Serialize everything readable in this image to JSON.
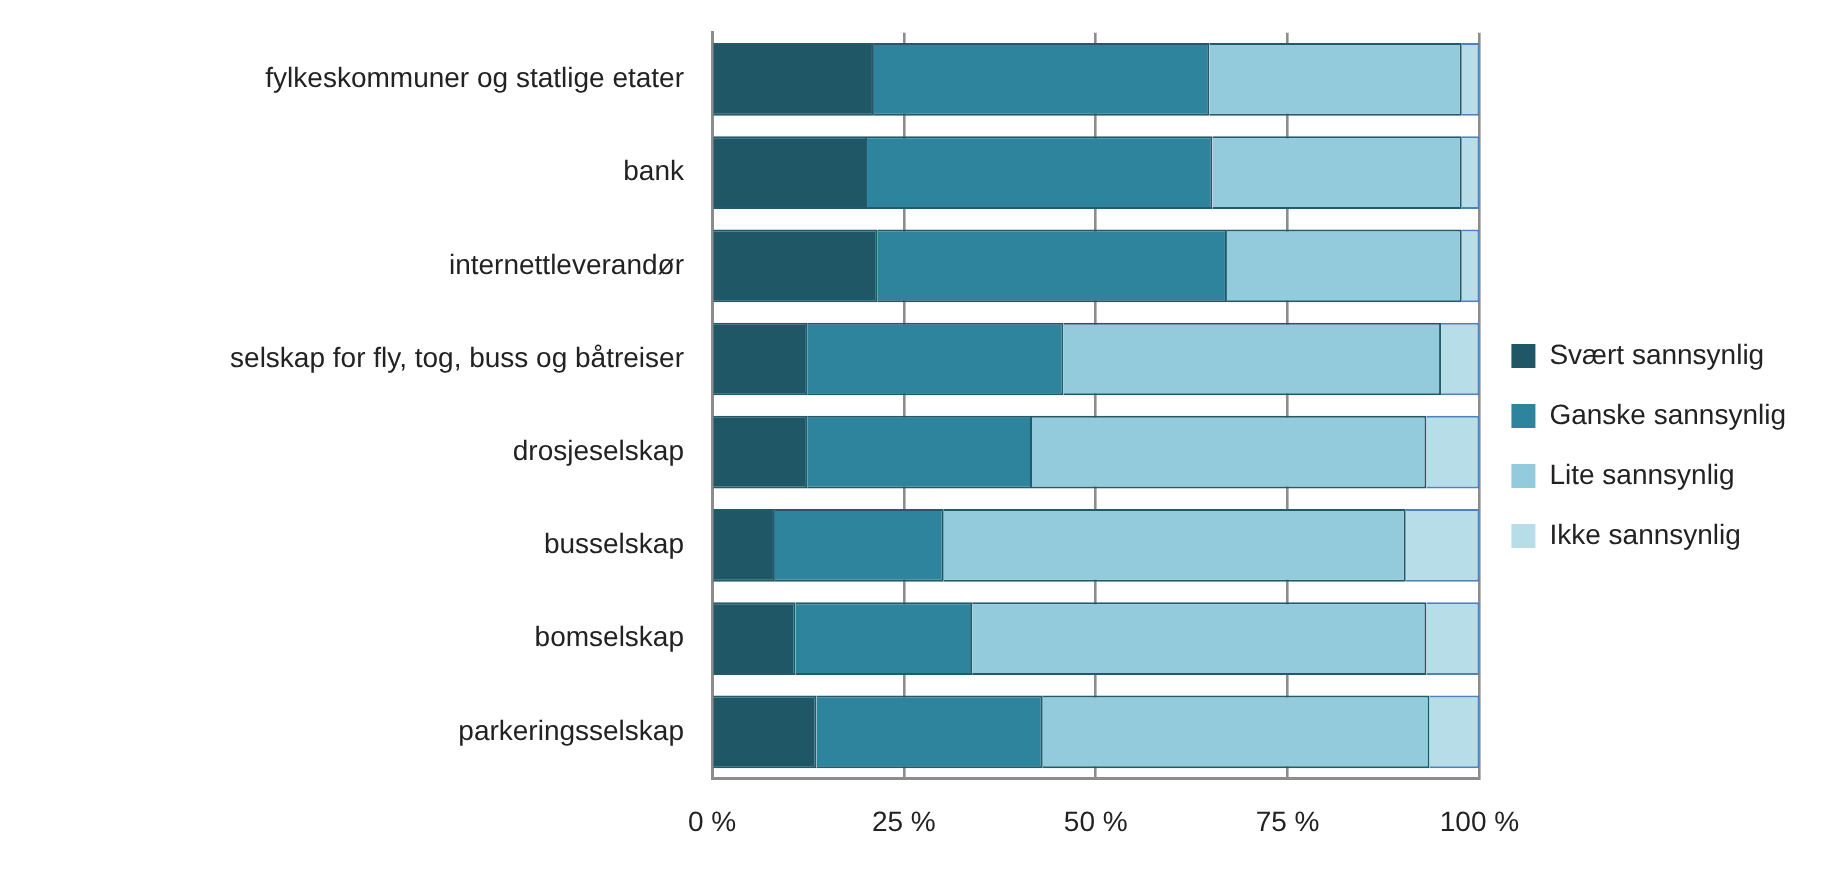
{
  "chart_data": {
    "type": "bar",
    "orientation": "horizontal",
    "stacked": true,
    "categories": [
      "fylkeskommuner og statlige etater",
      "bank",
      "internettleverandør",
      "selskap for fly, tog, buss og båtreiser",
      "drosjeselskap",
      "busselskap",
      "bomselskap",
      "parkeringsselskap"
    ],
    "series": [
      {
        "name": "Svært sannsynlig",
        "color": "#1f5766",
        "values": [
          21.1,
          20.2,
          21.6,
          12.4,
          12.4,
          8.2,
          10.9,
          13.6
        ]
      },
      {
        "name": "Ganske sannsynlig",
        "color": "#2e849c",
        "values": [
          43.7,
          45.0,
          45.5,
          33.4,
          29.3,
          22.0,
          23.0,
          29.5
        ]
      },
      {
        "name": "Lite sannsynlig",
        "color": "#93cbdc",
        "values": [
          32.9,
          32.5,
          30.6,
          49.2,
          51.4,
          60.2,
          59.2,
          50.4
        ]
      },
      {
        "name": "Ikke sannsynlig",
        "color": "#b7dde8",
        "values": [
          2.3,
          2.3,
          2.3,
          5.0,
          6.9,
          9.6,
          6.9,
          6.5
        ]
      }
    ],
    "xlim": [
      0,
      100
    ],
    "xticks": [
      {
        "value": 0,
        "label": "0 %"
      },
      {
        "value": 25,
        "label": "25 %"
      },
      {
        "value": 50,
        "label": "50 %"
      },
      {
        "value": 75,
        "label": "75 %"
      },
      {
        "value": 100,
        "label": "100 %"
      }
    ],
    "grid": "x",
    "legend": "right"
  }
}
